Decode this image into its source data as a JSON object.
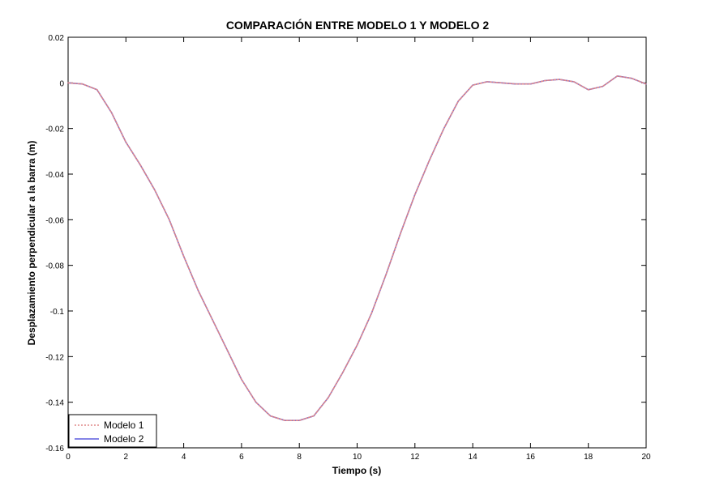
{
  "chart_data": {
    "type": "line",
    "title": "COMPARACIÓN ENTRE MODELO 1 Y MODELO 2",
    "xlabel": "Tiempo (s)",
    "ylabel": "Desplazamiento perpendicular a la barra (m)",
    "xlim": [
      0,
      20
    ],
    "ylim": [
      -0.16,
      0.02
    ],
    "xticks": [
      0,
      2,
      4,
      6,
      8,
      10,
      12,
      14,
      16,
      18,
      20
    ],
    "yticks": [
      0.02,
      0,
      -0.02,
      -0.04,
      -0.06,
      -0.08,
      -0.1,
      -0.12,
      -0.14,
      -0.16
    ],
    "xtick_labels": [
      "0",
      "2",
      "4",
      "6",
      "8",
      "10",
      "12",
      "14",
      "16",
      "18",
      "20"
    ],
    "ytick_labels": [
      "0.02",
      "0",
      "-0.02",
      "-0.04",
      "-0.06",
      "-0.08",
      "-0.1",
      "-0.12",
      "-0.14",
      "-0.16"
    ],
    "grid": false,
    "legend_position": "bottom-left",
    "x": [
      0,
      0.5,
      1,
      1.5,
      2,
      2.5,
      3,
      3.5,
      4,
      4.5,
      5,
      5.5,
      6,
      6.5,
      7,
      7.5,
      8,
      8.5,
      9,
      9.5,
      10,
      10.5,
      11,
      11.5,
      12,
      12.5,
      13,
      13.5,
      14,
      14.5,
      15,
      15.5,
      16,
      16.5,
      17,
      17.5,
      18,
      18.5,
      19,
      19.5,
      20
    ],
    "series": [
      {
        "name": "Modelo 1",
        "color": "#e08a8a",
        "style": "dotted",
        "values": [
          0,
          -0.0005,
          -0.003,
          -0.013,
          -0.026,
          -0.036,
          -0.047,
          -0.06,
          -0.076,
          -0.091,
          -0.104,
          -0.117,
          -0.13,
          -0.14,
          -0.146,
          -0.148,
          -0.148,
          -0.146,
          -0.138,
          -0.127,
          -0.115,
          -0.101,
          -0.084,
          -0.066,
          -0.049,
          -0.034,
          -0.02,
          -0.008,
          -0.001,
          0.0005,
          0,
          -0.0005,
          -0.0005,
          0.001,
          0.0015,
          0.0005,
          -0.003,
          -0.0015,
          0.003,
          0.002,
          -0.0005
        ]
      },
      {
        "name": "Modelo 2",
        "color": "#5c5cdd",
        "style": "solid",
        "values": [
          0,
          -0.0005,
          -0.003,
          -0.013,
          -0.026,
          -0.036,
          -0.047,
          -0.06,
          -0.076,
          -0.091,
          -0.104,
          -0.117,
          -0.13,
          -0.14,
          -0.146,
          -0.148,
          -0.148,
          -0.146,
          -0.138,
          -0.127,
          -0.115,
          -0.101,
          -0.084,
          -0.066,
          -0.049,
          -0.034,
          -0.02,
          -0.008,
          -0.001,
          0.0005,
          0,
          -0.0005,
          -0.0005,
          0.001,
          0.0015,
          0.0005,
          -0.003,
          -0.0015,
          0.003,
          0.002,
          -0.0005
        ]
      }
    ]
  }
}
